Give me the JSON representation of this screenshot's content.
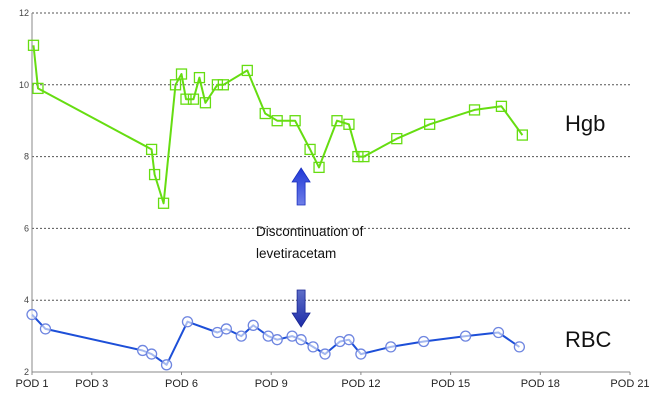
{
  "chart_data": {
    "type": "line",
    "x_tick_labels": [
      "POD 1",
      "POD 3",
      "POD 6",
      "POD 9",
      "POD 12",
      "POD 15",
      "POD 18",
      "POD 21"
    ],
    "y_tick_labels": [
      "2",
      "4",
      "6",
      "8",
      "10",
      "12"
    ],
    "ylim": [
      2,
      12
    ],
    "xlim": [
      1,
      21
    ],
    "grid": "horizontal dashed",
    "annotation": {
      "line1": "Discontinuation of",
      "line2": "levetiracetam",
      "x": 10.0
    },
    "series": [
      {
        "name": "Hgb",
        "color": "#66dd11",
        "marker": "square",
        "x": [
          1.05,
          1.2,
          5.0,
          5.1,
          5.4,
          5.8,
          6.0,
          6.15,
          6.4,
          6.6,
          6.8,
          7.2,
          7.4,
          8.2,
          8.8,
          9.2,
          9.8,
          10.3,
          10.6,
          11.2,
          11.6,
          11.9,
          12.1,
          13.2,
          14.3,
          15.8,
          16.7,
          17.4
        ],
        "y": [
          11.1,
          9.9,
          8.2,
          7.5,
          6.7,
          10.0,
          10.3,
          9.6,
          9.6,
          10.2,
          9.5,
          10.0,
          10.0,
          10.4,
          9.2,
          9.0,
          9.0,
          8.2,
          7.7,
          9.0,
          8.9,
          8.0,
          8.0,
          8.5,
          8.9,
          9.3,
          9.4,
          8.6
        ]
      },
      {
        "name": "RBC",
        "color": "#1d4fd8",
        "marker": "circle",
        "x": [
          1.0,
          1.45,
          4.7,
          5.0,
          5.5,
          6.2,
          7.2,
          7.5,
          8.0,
          8.4,
          8.9,
          9.2,
          9.7,
          10.0,
          10.4,
          10.8,
          11.3,
          11.6,
          12.0,
          13.0,
          14.1,
          15.5,
          16.6,
          17.3
        ],
        "y": [
          3.6,
          3.2,
          2.6,
          2.5,
          2.2,
          3.4,
          3.1,
          3.2,
          3.0,
          3.3,
          3.0,
          2.9,
          3.0,
          2.9,
          2.7,
          2.5,
          2.85,
          2.9,
          2.5,
          2.7,
          2.85,
          3.0,
          3.1,
          2.7
        ]
      }
    ]
  },
  "labels": {
    "hgb": "Hgb",
    "rbc": "RBC"
  }
}
